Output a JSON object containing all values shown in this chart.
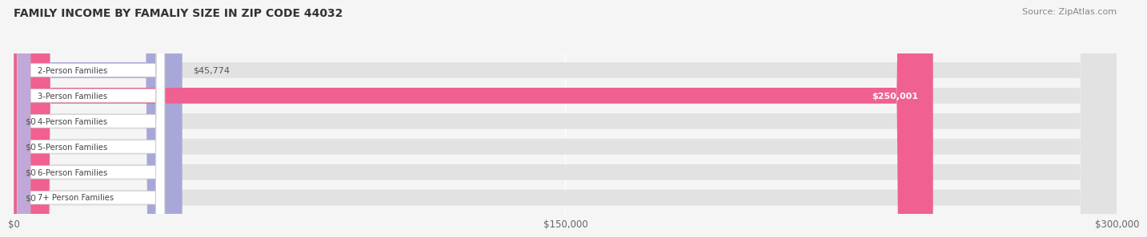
{
  "title": "FAMILY INCOME BY FAMALIY SIZE IN ZIP CODE 44032",
  "source": "Source: ZipAtlas.com",
  "categories": [
    "2-Person Families",
    "3-Person Families",
    "4-Person Families",
    "5-Person Families",
    "6-Person Families",
    "7+ Person Families"
  ],
  "values": [
    45774,
    250001,
    0,
    0,
    0,
    0
  ],
  "bar_colors": [
    "#a8a8d8",
    "#f06090",
    "#f5c888",
    "#f0a0a0",
    "#a0b8d8",
    "#c0a8d8"
  ],
  "value_labels": [
    "$45,774",
    "$250,001",
    "$0",
    "$0",
    "$0",
    "$0"
  ],
  "value_label_inside": [
    false,
    true,
    false,
    false,
    false,
    false
  ],
  "xlim": [
    0,
    300000
  ],
  "xtick_values": [
    0,
    150000,
    300000
  ],
  "xtick_labels": [
    "$0",
    "$150,000",
    "$300,000"
  ],
  "background_color": "#f5f5f5",
  "title_fontsize": 10,
  "source_fontsize": 8
}
